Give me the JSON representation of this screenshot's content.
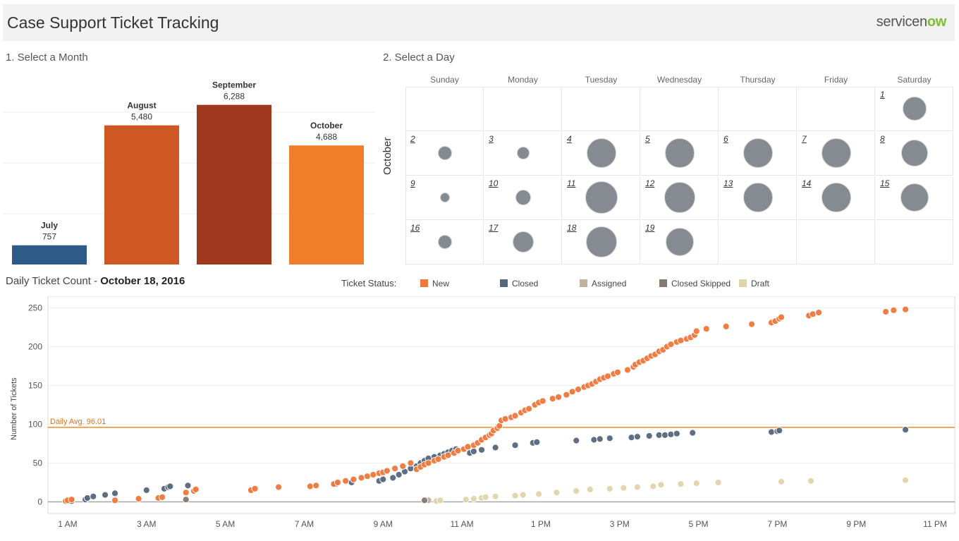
{
  "header": {
    "title": "Case Support Ticket Tracking",
    "logo_prefix": "servicen",
    "logo_o": "ow",
    "logo_suffix": ""
  },
  "month_section": {
    "title": "1. Select a Month"
  },
  "day_section": {
    "title": "2. Select a Day"
  },
  "calendar": {
    "month": "October",
    "day_names": [
      "Sunday",
      "Monday",
      "Tuesday",
      "Wednesday",
      "Thursday",
      "Friday",
      "Saturday"
    ],
    "weeks": [
      [
        null,
        null,
        null,
        null,
        null,
        null,
        {
          "day": "1",
          "level": 0.68
        }
      ],
      [
        {
          "day": "2",
          "level": 0.31
        },
        {
          "day": "3",
          "level": 0.25
        },
        {
          "day": "4",
          "level": 0.9
        },
        {
          "day": "5",
          "level": 0.88
        },
        {
          "day": "6",
          "level": 0.9
        },
        {
          "day": "7",
          "level": 0.9
        },
        {
          "day": "8",
          "level": 0.8
        }
      ],
      [
        {
          "day": "9",
          "level": 0.18
        },
        {
          "day": "10",
          "level": 0.37
        },
        {
          "day": "11",
          "level": 1.0
        },
        {
          "day": "12",
          "level": 0.96
        },
        {
          "day": "13",
          "level": 0.9
        },
        {
          "day": "14",
          "level": 0.88
        },
        {
          "day": "15",
          "level": 0.85
        }
      ],
      [
        {
          "day": "16",
          "level": 0.33
        },
        {
          "day": "17",
          "level": 0.6
        },
        {
          "day": "18",
          "level": 0.96
        },
        {
          "day": "19",
          "level": 0.86
        },
        null,
        null,
        null
      ]
    ]
  },
  "daily": {
    "title_prefix": "Daily Ticket Count - ",
    "title_date": "October 18, 2016"
  },
  "legend": {
    "label": "Ticket Status:",
    "items": [
      {
        "name": "New",
        "color": "#f0783b"
      },
      {
        "name": "Closed",
        "color": "#56687d"
      },
      {
        "name": "Assigned",
        "color": "#c2b3a1"
      },
      {
        "name": "Closed Skipped",
        "color": "#857a71"
      },
      {
        "name": "Draft",
        "color": "#e0d4aa"
      }
    ]
  },
  "chart_data": [
    {
      "type": "bar",
      "categories": [
        "July",
        "August",
        "September",
        "October"
      ],
      "values": [
        757,
        5480,
        6288,
        4688
      ],
      "value_labels": [
        "757",
        "5,480",
        "6,288",
        "4,688"
      ],
      "colors": [
        "#2e5a87",
        "#cf5723",
        "#a0381f",
        "#f07e2b"
      ],
      "ylim": [
        0,
        7000
      ],
      "gridlines": [
        2000,
        4000,
        6000
      ],
      "title": "",
      "xlabel": "",
      "ylabel": ""
    },
    {
      "type": "scatter",
      "title": "Daily Ticket Count - October 18, 2016",
      "ylabel": "Number of Tickets",
      "xlabel": "",
      "x_unit": "hour of day",
      "x_ticks": [
        "1 AM",
        "3 AM",
        "5 AM",
        "7 AM",
        "9 AM",
        "11 AM",
        "1 PM",
        "3 PM",
        "5 PM",
        "7 PM",
        "9 PM",
        "11 PM"
      ],
      "x_tick_values": [
        1,
        3,
        5,
        7,
        9,
        11,
        13,
        15,
        17,
        19,
        21,
        23
      ],
      "xlim": [
        0.5,
        23.5
      ],
      "ylim": [
        -15,
        265
      ],
      "y_ticks": [
        0,
        50,
        100,
        150,
        200,
        250
      ],
      "reference_line": {
        "label": "Daily Avg. 96.01",
        "value": 96.01,
        "color": "#f08a24"
      },
      "series": [
        {
          "name": "New",
          "color": "#f0783b",
          "x": [
            0.95,
            1.0,
            1.1,
            2.2,
            2.8,
            3.3,
            3.4,
            4.0,
            4.2,
            4.25,
            5.65,
            5.75,
            6.35,
            7.15,
            7.3,
            7.75,
            7.85,
            8.05,
            8.25,
            8.45,
            8.6,
            8.75,
            8.9,
            9.0,
            9.1,
            9.3,
            9.5,
            9.7,
            9.85,
            9.95,
            10.05,
            10.15,
            10.3,
            10.4,
            10.55,
            10.65,
            10.8,
            10.9,
            11.05,
            11.15,
            11.3,
            11.4,
            11.5,
            11.6,
            11.7,
            11.75,
            11.8,
            11.9,
            11.95,
            12.0,
            12.1,
            12.25,
            12.35,
            12.5,
            12.6,
            12.7,
            12.85,
            12.95,
            13.05,
            13.3,
            13.45,
            13.65,
            13.8,
            13.95,
            14.1,
            14.2,
            14.3,
            14.4,
            14.5,
            14.6,
            14.7,
            14.85,
            14.95,
            15.2,
            15.35,
            15.4,
            15.5,
            15.6,
            15.7,
            15.8,
            15.9,
            16.0,
            16.1,
            16.2,
            16.3,
            16.45,
            16.55,
            16.7,
            16.8,
            16.9,
            16.95,
            17.2,
            17.7,
            18.35,
            18.85,
            18.95,
            19.05,
            19.1,
            19.8,
            19.9,
            20.05,
            21.75,
            21.95,
            22.25
          ],
          "y": [
            1,
            2,
            3,
            2,
            4,
            5,
            6,
            12,
            14,
            16,
            15,
            17,
            19,
            20,
            21,
            23,
            25,
            27,
            29,
            31,
            33,
            35,
            37,
            38,
            40,
            43,
            46,
            50,
            42,
            45,
            48,
            50,
            53,
            55,
            58,
            60,
            63,
            66,
            68,
            71,
            73,
            76,
            80,
            83,
            86,
            88,
            92,
            95,
            98,
            105,
            107,
            109,
            111,
            115,
            118,
            120,
            125,
            128,
            130,
            133,
            135,
            138,
            142,
            145,
            148,
            150,
            152,
            155,
            158,
            160,
            162,
            165,
            167,
            170,
            174,
            177,
            180,
            182,
            185,
            188,
            190,
            194,
            196,
            200,
            203,
            206,
            208,
            210,
            212,
            215,
            220,
            223,
            226,
            229,
            231,
            233,
            236,
            238,
            240,
            242,
            244,
            245,
            247,
            248
          ]
        },
        {
          "name": "Closed",
          "color": "#56687d",
          "x": [
            1.1,
            1.45,
            1.5,
            1.65,
            1.95,
            2.2,
            3.0,
            3.45,
            3.55,
            3.6,
            4.05,
            7.8,
            8.2,
            8.9,
            9.0,
            9.25,
            9.4,
            9.55,
            9.7,
            9.85,
            9.95,
            10.05,
            10.15,
            10.3,
            10.45,
            10.55,
            10.65,
            10.75,
            10.85,
            11.2,
            11.3,
            11.5,
            11.85,
            12.35,
            12.8,
            12.9,
            13.9,
            14.35,
            14.5,
            14.75,
            15.3,
            15.45,
            15.75,
            16.0,
            16.15,
            16.3,
            16.45,
            16.85,
            18.85,
            19.0,
            19.05,
            22.25
          ],
          "y": [
            1,
            3,
            5,
            7,
            9,
            11,
            15,
            17,
            19,
            20,
            21,
            23,
            25,
            27,
            29,
            31,
            35,
            39,
            43,
            46,
            50,
            53,
            56,
            58,
            60,
            62,
            64,
            66,
            68,
            63,
            65,
            67,
            70,
            73,
            76,
            77,
            79,
            80,
            81,
            82,
            83,
            84,
            85,
            86,
            86,
            87,
            88,
            89,
            90,
            91,
            92,
            93
          ]
        },
        {
          "name": "Assigned",
          "color": "#c2b3a1",
          "x": [
            10.15
          ],
          "y": [
            2
          ]
        },
        {
          "name": "Closed Skipped",
          "color": "#857a71",
          "x": [
            4.0,
            10.05
          ],
          "y": [
            3,
            2
          ]
        },
        {
          "name": "Draft",
          "color": "#e0d4aa",
          "x": [
            10.35,
            10.45,
            11.1,
            11.3,
            11.5,
            11.6,
            11.85,
            12.35,
            12.55,
            12.95,
            13.4,
            13.9,
            14.25,
            14.75,
            15.1,
            15.45,
            15.85,
            16.05,
            16.55,
            16.95,
            17.5,
            19.1,
            19.85,
            22.25
          ],
          "y": [
            1,
            2,
            3,
            4,
            5,
            6,
            7,
            8,
            9,
            10,
            12,
            14,
            16,
            17,
            18,
            19,
            20,
            22,
            23,
            24,
            25,
            26,
            27,
            28
          ]
        }
      ]
    }
  ]
}
